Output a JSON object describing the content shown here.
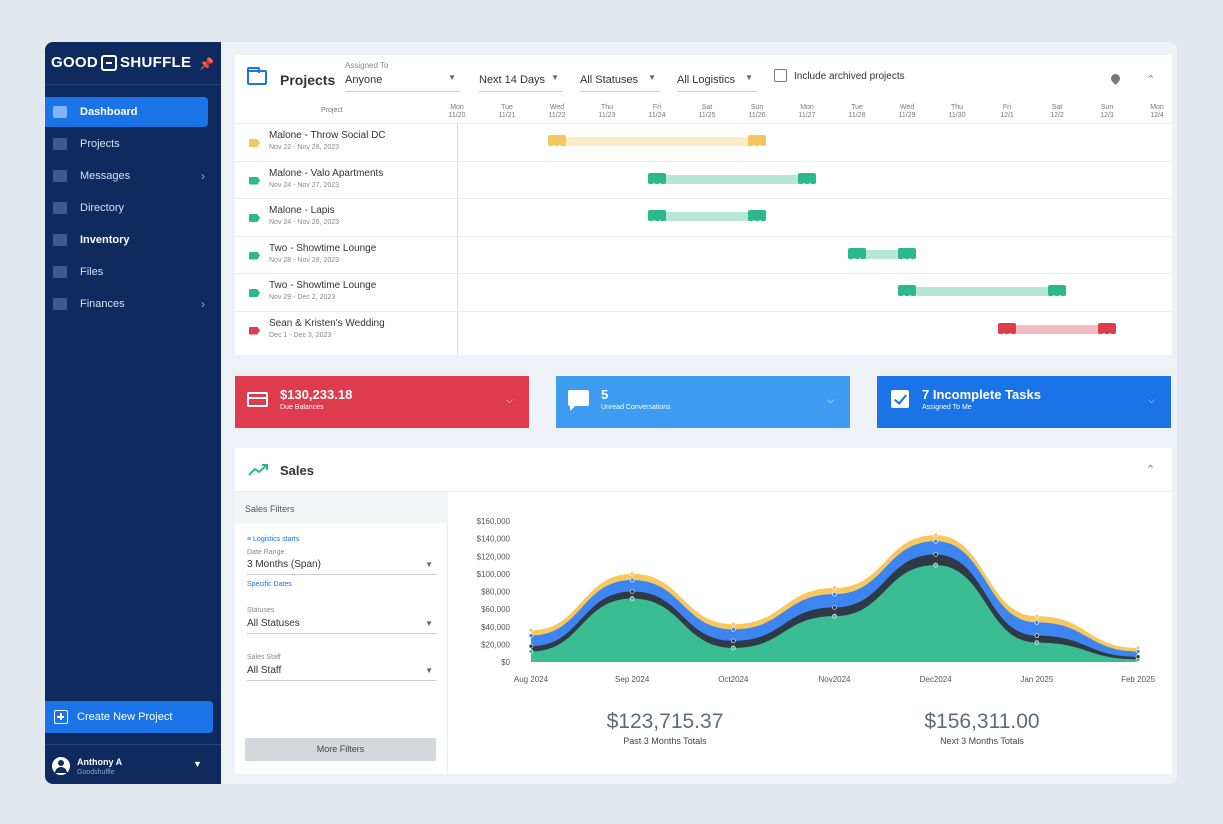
{
  "sidebar": {
    "brand": {
      "left": "GOOD",
      "right": "SHUFFLE"
    },
    "items": [
      {
        "label": "Dashboard",
        "icon": "dashboard-icon"
      },
      {
        "label": "Projects",
        "icon": "projects-icon"
      },
      {
        "label": "Messages",
        "icon": "messages-icon"
      },
      {
        "label": "Directory",
        "icon": "directory-icon"
      },
      {
        "label": "Inventory",
        "icon": "inventory-icon"
      },
      {
        "label": "Files",
        "icon": "files-icon"
      },
      {
        "label": "Finances",
        "icon": "finances-icon"
      }
    ],
    "create_label": "Create New Project",
    "user": {
      "name": "Anthony A",
      "org": "Goodshuffle"
    }
  },
  "projects": {
    "title": "Projects",
    "assigned_label": "Assigned To",
    "assigned_value": "Anyone",
    "range_value": "Next 14 Days",
    "status_value": "All Statuses",
    "logistics_value": "All Logistics",
    "archived_label": "Include archived projects",
    "column_label": "Project",
    "days": [
      {
        "d": "Mon",
        "date": "11/20"
      },
      {
        "d": "Tue",
        "date": "11/21"
      },
      {
        "d": "Wed",
        "date": "11/22"
      },
      {
        "d": "Thu",
        "date": "11/23"
      },
      {
        "d": "Fri",
        "date": "11/24"
      },
      {
        "d": "Sat",
        "date": "11/25"
      },
      {
        "d": "Sun",
        "date": "11/26"
      },
      {
        "d": "Mon",
        "date": "11/27"
      },
      {
        "d": "Tue",
        "date": "11/28"
      },
      {
        "d": "Wed",
        "date": "11/29"
      },
      {
        "d": "Thu",
        "date": "11/30"
      },
      {
        "d": "Fri",
        "date": "12/1"
      },
      {
        "d": "Sat",
        "date": "12/2"
      },
      {
        "d": "Sun",
        "date": "12/3"
      },
      {
        "d": "Mon",
        "date": "12/4"
      }
    ],
    "rows": [
      {
        "name": "Malone - Throw Social DC",
        "dates": "Nov 22 - Nov 26, 2023",
        "color": "#f5c75a",
        "start": 2,
        "end": 6
      },
      {
        "name": "Malone - Valo Apartments",
        "dates": "Nov 24 - Nov 27, 2023",
        "color": "#2bb88a",
        "start": 4,
        "end": 7
      },
      {
        "name": "Malone - Lapis",
        "dates": "Nov 24 - Nov 26, 2023",
        "color": "#2bb88a",
        "start": 4,
        "end": 6
      },
      {
        "name": "Two - Showtime Lounge",
        "dates": "Nov 28 - Nov 29, 2023",
        "color": "#2bb88a",
        "start": 8,
        "end": 9
      },
      {
        "name": "Two - Showtime Lounge",
        "dates": "Nov 29 - Dec 2, 2023",
        "color": "#2bb88a",
        "start": 9,
        "end": 12
      },
      {
        "name": "Sean & Kristen's Wedding",
        "dates": "Dec 1 - Dec 3, 2023",
        "color": "#de3b4d",
        "start": 11,
        "end": 13
      }
    ]
  },
  "stats": [
    {
      "value": "$130,233.18",
      "label": "Due Balances",
      "color": "#de3b4d"
    },
    {
      "value": "5",
      "label": "Unread Conversations",
      "color": "#3d9bf0"
    },
    {
      "value": "7 Incomplete Tasks",
      "label": "Assigned To Me",
      "color": "#1a74e8"
    }
  ],
  "sales": {
    "title": "Sales",
    "filters_title": "Sales Filters",
    "logistics_link": "Logistics starts",
    "date_range_label": "Date Range",
    "date_range_value": "3 Months (Span)",
    "specific_dates_link": "Specific Dates",
    "statuses_label": "Statuses",
    "statuses_value": "All Statuses",
    "staff_label": "Sales Staff",
    "staff_value": "All Staff",
    "more_filters": "More Filters",
    "past_total": "$123,715.37",
    "past_label": "Past 3 Months Totals",
    "next_total": "$156,311.00",
    "next_label": "Next 3 Months Totals"
  },
  "chart_data": {
    "type": "area",
    "categories": [
      "Aug 2024",
      "Sep 2024",
      "Oct2024",
      "Nov2024",
      "Dec2024",
      "Jan 2025",
      "Feb 2025"
    ],
    "y_ticks": [
      "$0",
      "$20,000",
      "$40,000",
      "$60,000",
      "$80,000",
      "$100,000",
      "$120,000",
      "$140,000",
      "$160,000"
    ],
    "ylim": [
      0,
      160000
    ],
    "grid": false,
    "series": [
      {
        "values": [
          12000,
          72000,
          16000,
          52000,
          110000,
          22000,
          3000
        ],
        "color": "#3bbd94"
      },
      {
        "values": [
          18000,
          80000,
          24000,
          62000,
          122000,
          30000,
          6000
        ],
        "color": "#2f3a46"
      },
      {
        "values": [
          30000,
          93000,
          37000,
          77000,
          137000,
          45000,
          12000
        ],
        "color": "#3d86f2"
      },
      {
        "values": [
          36000,
          100000,
          43000,
          84000,
          144000,
          52000,
          16000
        ],
        "color": "#f6c85f"
      }
    ]
  }
}
